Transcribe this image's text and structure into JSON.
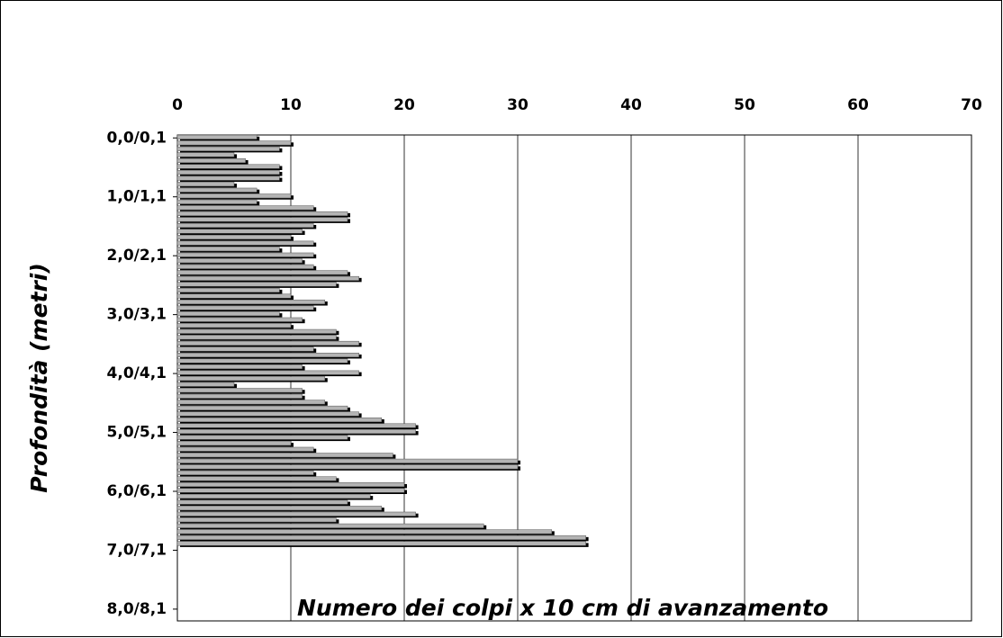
{
  "chart_data": {
    "type": "hbar",
    "xlabel": "Numero dei colpi x 10 cm di avanzamento",
    "ylabel": "Profondità (metri)",
    "categories": [
      "0,0/0,1",
      null,
      null,
      null,
      null,
      null,
      null,
      null,
      null,
      null,
      "1,0/1,1",
      null,
      null,
      null,
      null,
      null,
      null,
      null,
      null,
      null,
      "2,0/2,1",
      null,
      null,
      null,
      null,
      null,
      null,
      null,
      null,
      null,
      "3,0/3,1",
      null,
      null,
      null,
      null,
      null,
      null,
      null,
      null,
      null,
      "4,0/4,1",
      null,
      null,
      null,
      null,
      null,
      null,
      null,
      null,
      null,
      "5,0/5,1",
      null,
      null,
      null,
      null,
      null,
      null,
      null,
      null,
      null,
      "6,0/6,1",
      null,
      null,
      null,
      null,
      null,
      null,
      null,
      null,
      null,
      "7,0/7,1",
      null,
      null,
      null,
      null,
      null,
      null,
      null,
      null,
      null,
      "8,0/8,1"
    ],
    "values": [
      7,
      10,
      9,
      5,
      6,
      9,
      9,
      9,
      5,
      7,
      10,
      7,
      12,
      15,
      15,
      12,
      11,
      10,
      12,
      9,
      12,
      11,
      12,
      15,
      16,
      14,
      9,
      10,
      13,
      12,
      9,
      11,
      10,
      14,
      14,
      16,
      12,
      16,
      15,
      11,
      16,
      13,
      5,
      11,
      11,
      13,
      15,
      16,
      18,
      21,
      21,
      15,
      10,
      12,
      19,
      30,
      30,
      12,
      14,
      20,
      20,
      17,
      15,
      18,
      21,
      14,
      27,
      33,
      36,
      36,
      null,
      null,
      null,
      null,
      null,
      null,
      null,
      null,
      null,
      null,
      null
    ],
    "color": "#b4b4b4",
    "xlim": [
      0,
      70
    ],
    "xticks": [
      0,
      10,
      20,
      30,
      40,
      50,
      60,
      70
    ],
    "grid": true
  }
}
